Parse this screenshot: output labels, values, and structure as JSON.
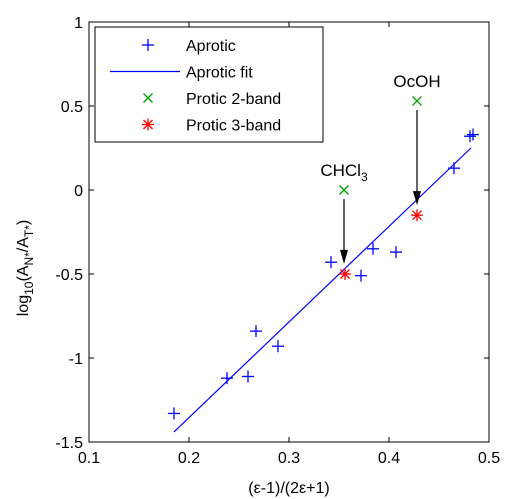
{
  "chart_data": {
    "type": "scatter",
    "title": "",
    "xlabel": "(ε-1)/(2ε+1)",
    "ylabel_parts": {
      "base": "log",
      "sub1": "10",
      "mid1": "(A",
      "sub2": "N*",
      "mid2": "/A",
      "sub3": "T*",
      "end": ")"
    },
    "xlim": [
      0.1,
      0.5
    ],
    "ylim": [
      -1.5,
      1
    ],
    "xticks": [
      0.1,
      0.2,
      0.3,
      0.4,
      0.5
    ],
    "yticks": [
      -1.5,
      -1,
      -0.5,
      0,
      0.5,
      1
    ],
    "xtick_labels": [
      "0.1",
      "0.2",
      "0.3",
      "0.4",
      "0.5"
    ],
    "ytick_labels": [
      "-1.5",
      "-1",
      "-0.5",
      "0",
      "0.5",
      "1"
    ],
    "grid": false,
    "legend_position": "top-left",
    "series": [
      {
        "name": "Aprotic",
        "kind": "points",
        "marker": "plus",
        "color": "#0000ff",
        "points": [
          [
            0.185,
            -1.33
          ],
          [
            0.238,
            -1.12
          ],
          [
            0.259,
            -1.11
          ],
          [
            0.267,
            -0.84
          ],
          [
            0.289,
            -0.93
          ],
          [
            0.342,
            -0.43
          ],
          [
            0.372,
            -0.51
          ],
          [
            0.384,
            -0.35
          ],
          [
            0.407,
            -0.37
          ],
          [
            0.465,
            0.13
          ],
          [
            0.481,
            0.32
          ],
          [
            0.484,
            0.33
          ]
        ]
      },
      {
        "name": "Aprotic fit",
        "kind": "line",
        "color": "#0000ff",
        "points": [
          [
            0.185,
            -1.44
          ],
          [
            0.482,
            0.25
          ]
        ]
      },
      {
        "name": "Protic 2-band",
        "kind": "points",
        "marker": "x",
        "color": "#00a000",
        "points": [
          [
            0.355,
            0.0
          ],
          [
            0.428,
            0.53
          ]
        ]
      },
      {
        "name": "Protic 3-band",
        "kind": "points",
        "marker": "star",
        "color": "#ff0000",
        "points": [
          [
            0.356,
            -0.5
          ],
          [
            0.428,
            -0.15
          ]
        ]
      }
    ],
    "annotations": [
      {
        "label_parts": {
          "base": "CHCl",
          "sub": "3"
        },
        "from": [
          0.355,
          0.0
        ],
        "to": [
          0.355,
          -0.44
        ]
      },
      {
        "label_parts": {
          "base": "OcOH",
          "sub": ""
        },
        "from": [
          0.428,
          0.53
        ],
        "to": [
          0.428,
          -0.09
        ]
      }
    ]
  }
}
